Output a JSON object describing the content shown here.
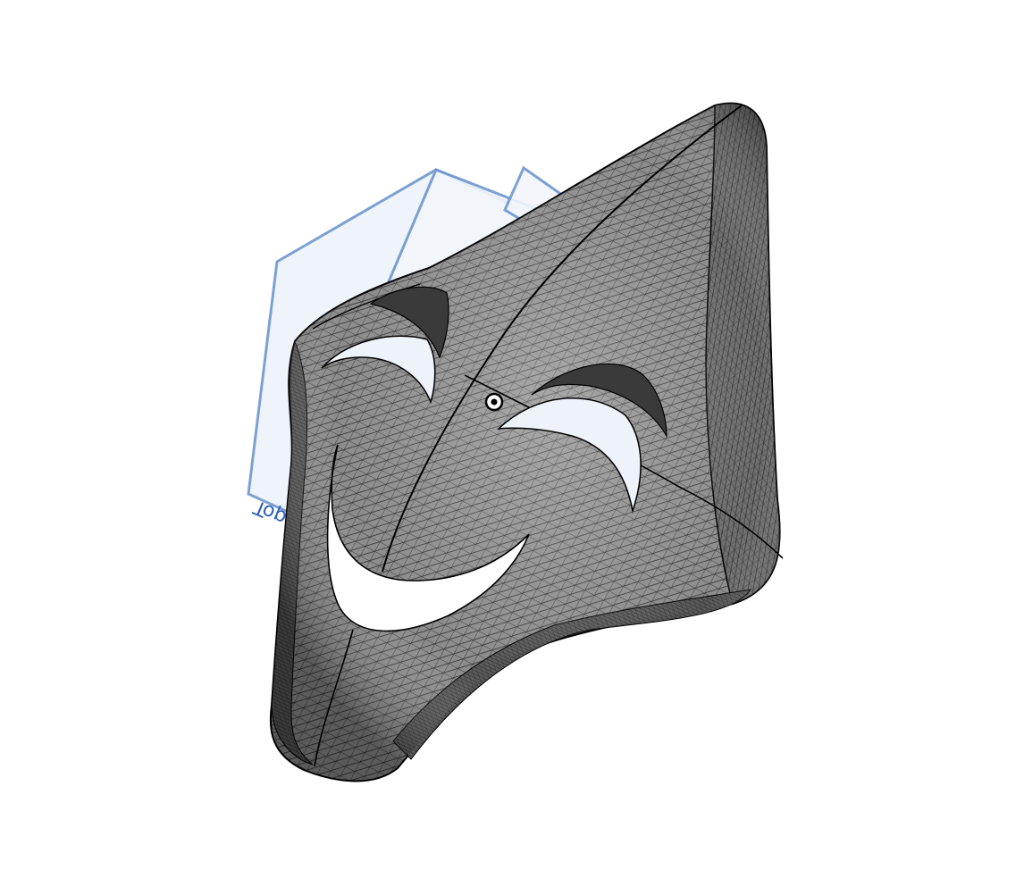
{
  "scene": {
    "background_color": "#ffffff",
    "model_color": "#8a8a8a",
    "model_dark_color": "#2a2a2a",
    "wire_color": "#1a1a1a",
    "edge_color": "#000000",
    "plane_stroke_color": "#6f96cf",
    "plane_fill_color": "#e6eef8",
    "plane_label_color": "#2f5fb5",
    "cutout_fill_color": "#eef3f9"
  },
  "planes": [
    {
      "name": "top-plane",
      "label": "Top"
    },
    {
      "name": "front-plane",
      "label": ""
    },
    {
      "name": "right-plane",
      "label": ""
    }
  ],
  "features": {
    "origin_icon": "origin-icon",
    "model": "mask-solid-body",
    "eye_cutouts": [
      "left-eye-cutout",
      "right-eye-cutout"
    ],
    "mouth_cutout": "mouth-cutout"
  }
}
